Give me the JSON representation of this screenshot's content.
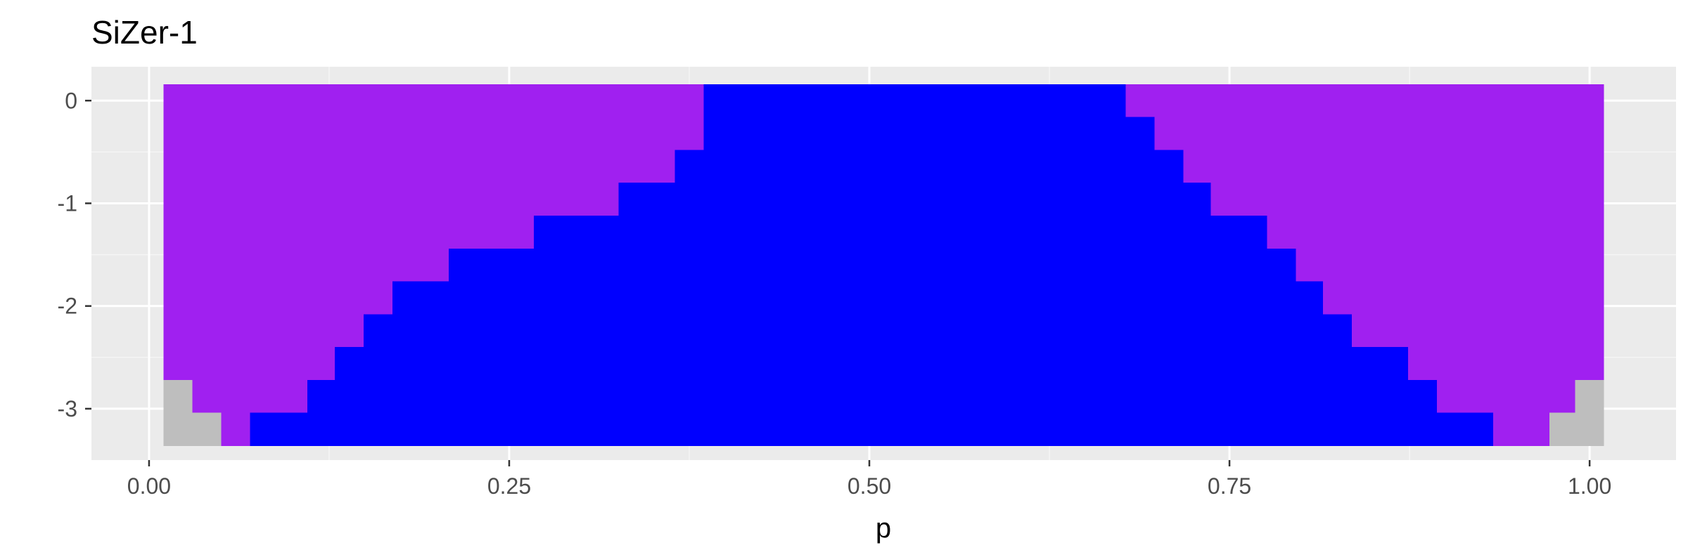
{
  "chart_data": {
    "type": "heatmap",
    "title": "SiZer-1",
    "xlabel": "p",
    "ylabel": "",
    "xlim": [
      -0.04,
      1.06
    ],
    "ylim": [
      -3.5,
      0.33
    ],
    "x_ticks": [
      0.0,
      0.25,
      0.5,
      0.75,
      1.0
    ],
    "x_tick_labels": [
      "0.00",
      "0.25",
      "0.50",
      "0.75",
      "1.00"
    ],
    "y_ticks": [
      0,
      -1,
      -2,
      -3
    ],
    "y_tick_labels": [
      "0",
      "-1",
      "-2",
      "-3"
    ],
    "x_range": [
      0.01,
      1.01
    ],
    "row_height": 0.32,
    "legend": "none",
    "categories": [
      "increasing",
      "decreasing",
      "not significant",
      "sparse data"
    ],
    "colors": {
      "increasing": "#0000ff",
      "decreasing": "#a020f0",
      "not significant": "#a020f0",
      "sparse data": "#bebebe",
      "panel_bg": "#ebebeb",
      "grid_major": "#ffffff",
      "grid_minor": "#f5f5f5"
    },
    "rows": [
      {
        "log_h": 0.0,
        "blue": [
          0.385,
          0.678
        ],
        "gray": []
      },
      {
        "log_h": -0.32,
        "blue": [
          0.385,
          0.698
        ],
        "gray": []
      },
      {
        "log_h": -0.64,
        "blue": [
          0.365,
          0.718
        ],
        "gray": []
      },
      {
        "log_h": -0.96,
        "blue": [
          0.326,
          0.737
        ],
        "gray": []
      },
      {
        "log_h": -1.28,
        "blue": [
          0.267,
          0.776
        ],
        "gray": []
      },
      {
        "log_h": -1.6,
        "blue": [
          0.208,
          0.796
        ],
        "gray": []
      },
      {
        "log_h": -1.92,
        "blue": [
          0.169,
          0.815
        ],
        "gray": []
      },
      {
        "log_h": -2.24,
        "blue": [
          0.149,
          0.835
        ],
        "gray": []
      },
      {
        "log_h": -2.56,
        "blue": [
          0.129,
          0.874
        ],
        "gray": []
      },
      {
        "log_h": -2.88,
        "blue": [
          0.11,
          0.894
        ],
        "gray": [
          [
            0.01,
            0.03
          ],
          [
            0.99,
            1.01
          ]
        ]
      },
      {
        "log_h": -3.2,
        "blue": [
          0.07,
          0.933
        ],
        "gray": [
          [
            0.01,
            0.05
          ],
          [
            0.972,
            1.01
          ]
        ]
      }
    ]
  }
}
